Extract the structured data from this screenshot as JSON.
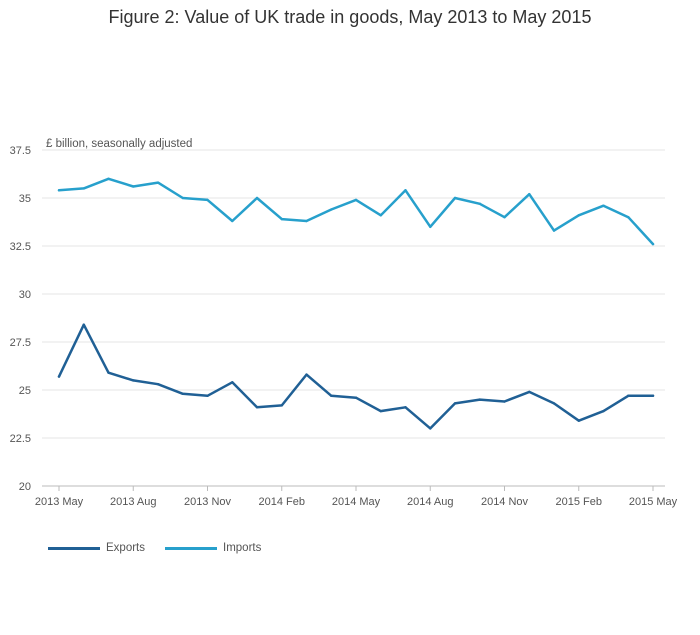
{
  "chart_data": {
    "type": "line",
    "title": "Figure 2: Value of UK trade in goods, May 2013 to May 2015",
    "ylabel": "£ billion, seasonally adjusted",
    "xlabel": "",
    "x": [
      "2013 May",
      "2013 Jun",
      "2013 Jul",
      "2013 Aug",
      "2013 Sep",
      "2013 Oct",
      "2013 Nov",
      "2013 Dec",
      "2014 Jan",
      "2014 Feb",
      "2014 Mar",
      "2014 Apr",
      "2014 May",
      "2014 Jun",
      "2014 Jul",
      "2014 Aug",
      "2014 Sep",
      "2014 Oct",
      "2014 Nov",
      "2014 Dec",
      "2015 Jan",
      "2015 Feb",
      "2015 Mar",
      "2015 Apr",
      "2015 May"
    ],
    "x_ticks": [
      "2013 May",
      "2013 Aug",
      "2013 Nov",
      "2014 Feb",
      "2014 May",
      "2014 Aug",
      "2014 Nov",
      "2015 Feb",
      "2015 May"
    ],
    "y_ticks": [
      "20",
      "22.5",
      "25",
      "27.5",
      "30",
      "32.5",
      "35",
      "37.5"
    ],
    "ylim": [
      20,
      37.5
    ],
    "grid": true,
    "legend_position": "bottom-left",
    "series": [
      {
        "name": "Exports",
        "color": "#206095",
        "values": [
          25.7,
          28.4,
          25.9,
          25.5,
          25.3,
          24.8,
          24.7,
          25.4,
          24.1,
          24.2,
          25.8,
          24.7,
          24.6,
          23.9,
          24.1,
          23.0,
          24.3,
          24.5,
          24.4,
          24.9,
          24.3,
          23.4,
          23.9,
          24.7,
          24.7
        ]
      },
      {
        "name": "Imports",
        "color": "#27a0cc",
        "values": [
          35.4,
          35.5,
          36.0,
          35.6,
          35.8,
          35.0,
          34.9,
          33.8,
          35.0,
          33.9,
          33.8,
          34.4,
          34.9,
          34.1,
          35.4,
          33.5,
          35.0,
          34.7,
          34.0,
          35.2,
          33.3,
          34.1,
          34.6,
          34.0,
          32.6
        ]
      }
    ]
  }
}
